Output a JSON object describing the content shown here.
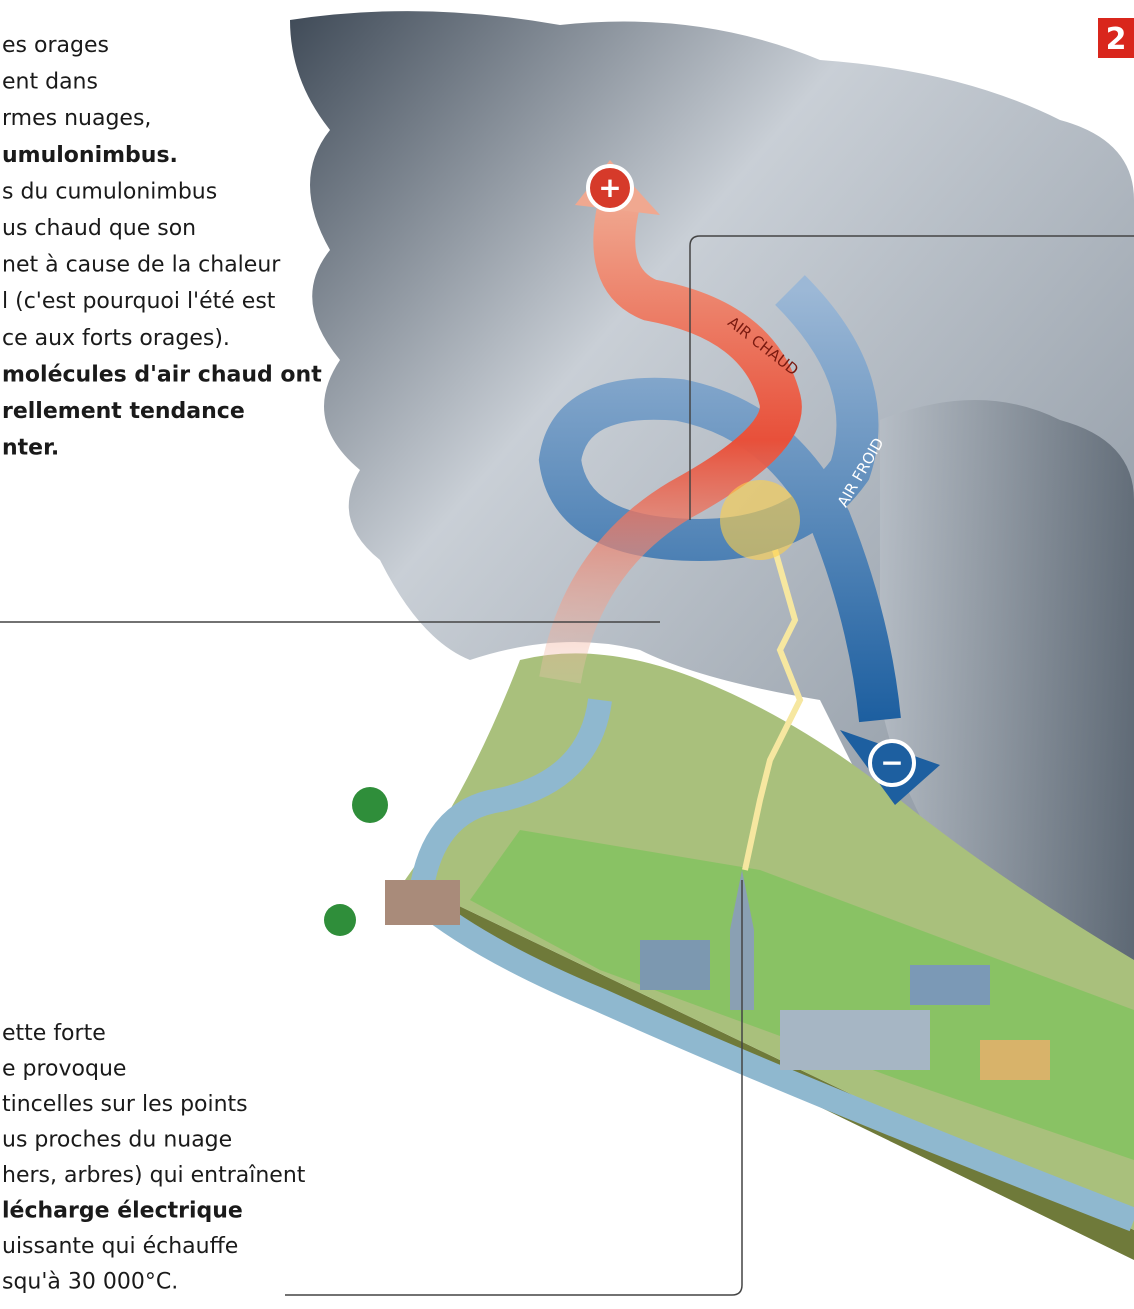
{
  "badge": "2",
  "top_text": [
    {
      "text": "es orages",
      "bold": false
    },
    {
      "text": "ent dans",
      "bold": false
    },
    {
      "text": "rmes nuages,",
      "bold": false
    },
    {
      "text": "umulonimbus.",
      "bold": true
    },
    {
      "text": "s du cumulonimbus",
      "bold": false
    },
    {
      "text": "us chaud que son",
      "bold": false
    },
    {
      "text": "net à cause de la chaleur",
      "bold": false
    },
    {
      "text": "l (c'est pourquoi l'été est",
      "bold": false
    },
    {
      "text": "ce aux forts orages).",
      "bold": false
    },
    {
      "text": "molécules d'air chaud ont",
      "bold": true
    },
    {
      "text": "rellement tendance",
      "bold": true
    },
    {
      "text": "nter.",
      "bold": true
    }
  ],
  "bottom_text": [
    {
      "text": "ette forte",
      "bold": false
    },
    {
      "text": "e provoque",
      "bold": false
    },
    {
      "text": "tincelles sur les points",
      "bold": false
    },
    {
      "text": "us proches du nuage",
      "bold": false
    },
    {
      "text": "hers, arbres) qui entraînent",
      "bold": false
    },
    {
      "text": "lécharge électrique",
      "bold": true
    },
    {
      "text": "uissante qui échauffe",
      "bold": false
    },
    {
      "text": "squ'à 30 000°C.",
      "bold": false
    }
  ],
  "labels": {
    "warm_air": "AIR CHAUD",
    "cold_air": "AIR FROID",
    "plus": "+",
    "minus": "−"
  }
}
